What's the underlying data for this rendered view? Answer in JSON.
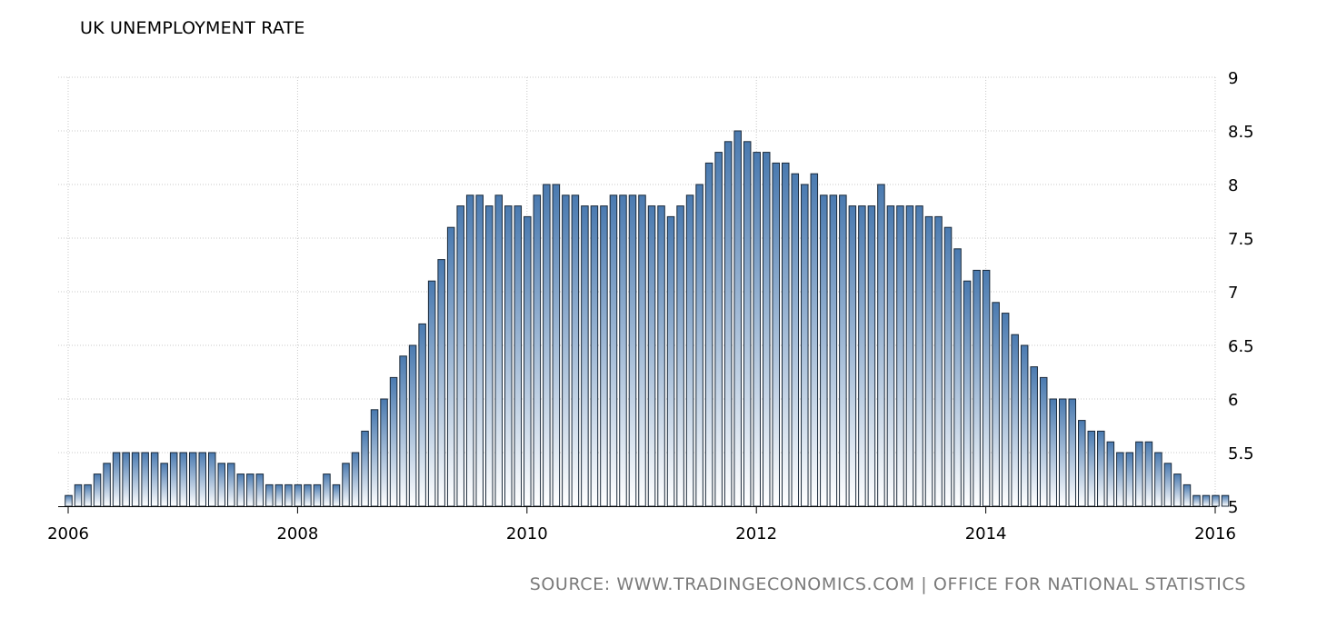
{
  "title": "UK UNEMPLOYMENT RATE",
  "source": "SOURCE: WWW.TRADINGECONOMICS.COM | OFFICE FOR NATIONAL STATISTICS",
  "colors": {
    "bar_top": "#4a7ab0",
    "bar_bottom": "#ffffff",
    "bar_stroke": "#1b2a3a",
    "grid": "#c8c8c8"
  },
  "chart_data": {
    "type": "bar",
    "title": "UK UNEMPLOYMENT RATE",
    "xlabel": "",
    "ylabel": "",
    "y_axis_position": "right",
    "grid": true,
    "ylim": [
      5,
      9
    ],
    "y_ticks": [
      5,
      5.5,
      6,
      6.5,
      7,
      7.5,
      8,
      8.5,
      9
    ],
    "x_ticks": [
      {
        "label": "2006",
        "date": "2006-01"
      },
      {
        "label": "2008",
        "date": "2008-01"
      },
      {
        "label": "2010",
        "date": "2010-01"
      },
      {
        "label": "2012",
        "date": "2012-01"
      },
      {
        "label": "2014",
        "date": "2014-01"
      },
      {
        "label": "2016",
        "date": "2016-01"
      }
    ],
    "x_start": "2006-01",
    "frequency": "monthly",
    "values": [
      5.1,
      5.2,
      5.2,
      5.3,
      5.4,
      5.5,
      5.5,
      5.5,
      5.5,
      5.5,
      5.4,
      5.5,
      5.5,
      5.5,
      5.5,
      5.5,
      5.4,
      5.4,
      5.3,
      5.3,
      5.3,
      5.2,
      5.2,
      5.2,
      5.2,
      5.2,
      5.2,
      5.3,
      5.2,
      5.4,
      5.5,
      5.7,
      5.9,
      6.0,
      6.2,
      6.4,
      6.5,
      6.7,
      7.1,
      7.3,
      7.6,
      7.8,
      7.9,
      7.9,
      7.8,
      7.9,
      7.8,
      7.8,
      7.7,
      7.9,
      8.0,
      8.0,
      7.9,
      7.9,
      7.8,
      7.8,
      7.8,
      7.9,
      7.9,
      7.9,
      7.9,
      7.8,
      7.8,
      7.7,
      7.8,
      7.9,
      8.0,
      8.2,
      8.3,
      8.4,
      8.5,
      8.4,
      8.3,
      8.3,
      8.2,
      8.2,
      8.1,
      8.0,
      8.1,
      7.9,
      7.9,
      7.9,
      7.8,
      7.8,
      7.8,
      8.0,
      7.8,
      7.8,
      7.8,
      7.8,
      7.7,
      7.7,
      7.6,
      7.4,
      7.1,
      7.2,
      7.2,
      6.9,
      6.8,
      6.6,
      6.5,
      6.3,
      6.2,
      6.0,
      6.0,
      6.0,
      5.8,
      5.7,
      5.7,
      5.6,
      5.5,
      5.5,
      5.6,
      5.6,
      5.5,
      5.4,
      5.3,
      5.2,
      5.1,
      5.1,
      5.1,
      5.1
    ]
  }
}
